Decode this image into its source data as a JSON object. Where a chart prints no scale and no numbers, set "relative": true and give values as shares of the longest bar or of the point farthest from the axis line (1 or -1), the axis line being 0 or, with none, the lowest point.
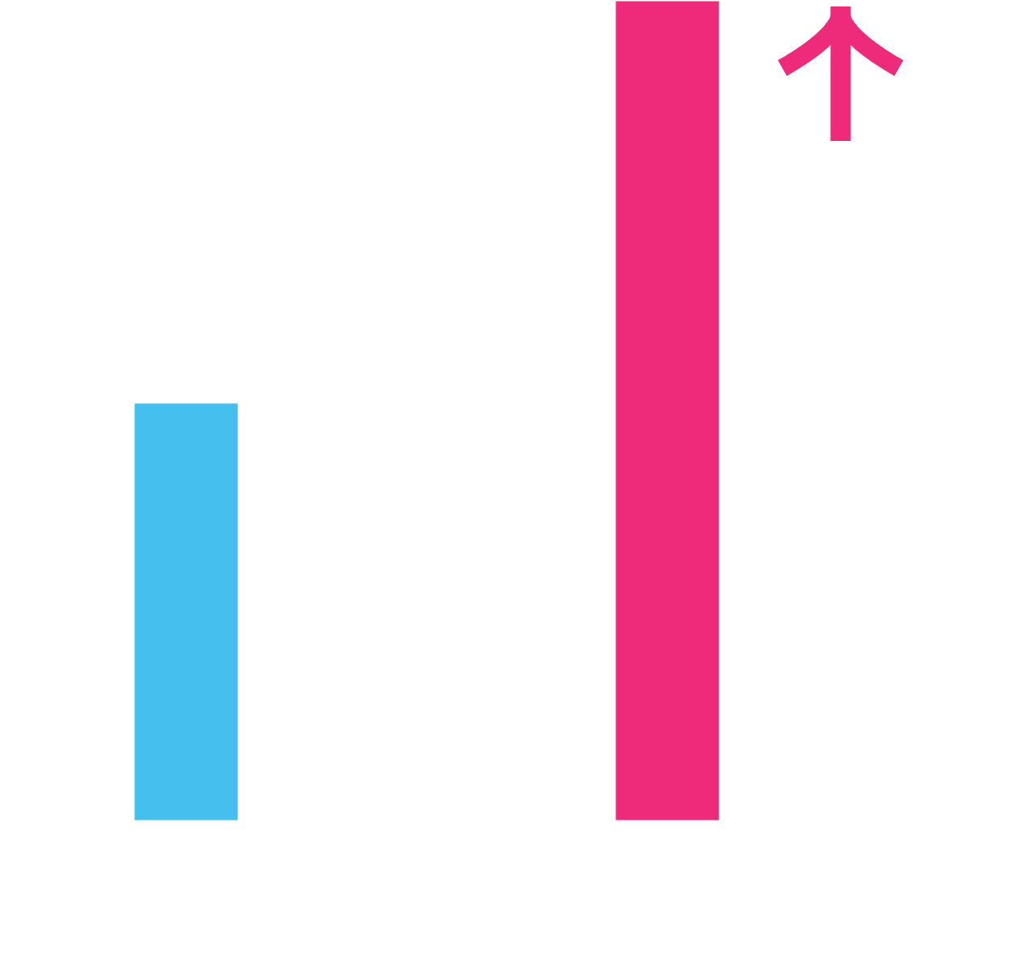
{
  "chart_data": {
    "type": "bar",
    "relative": true,
    "categories": [
      null,
      null
    ],
    "values": [
      0.51,
      1
    ],
    "colors": [
      "#45bfee",
      "#ee2a7b"
    ],
    "grid": false,
    "legend": false
  }
}
